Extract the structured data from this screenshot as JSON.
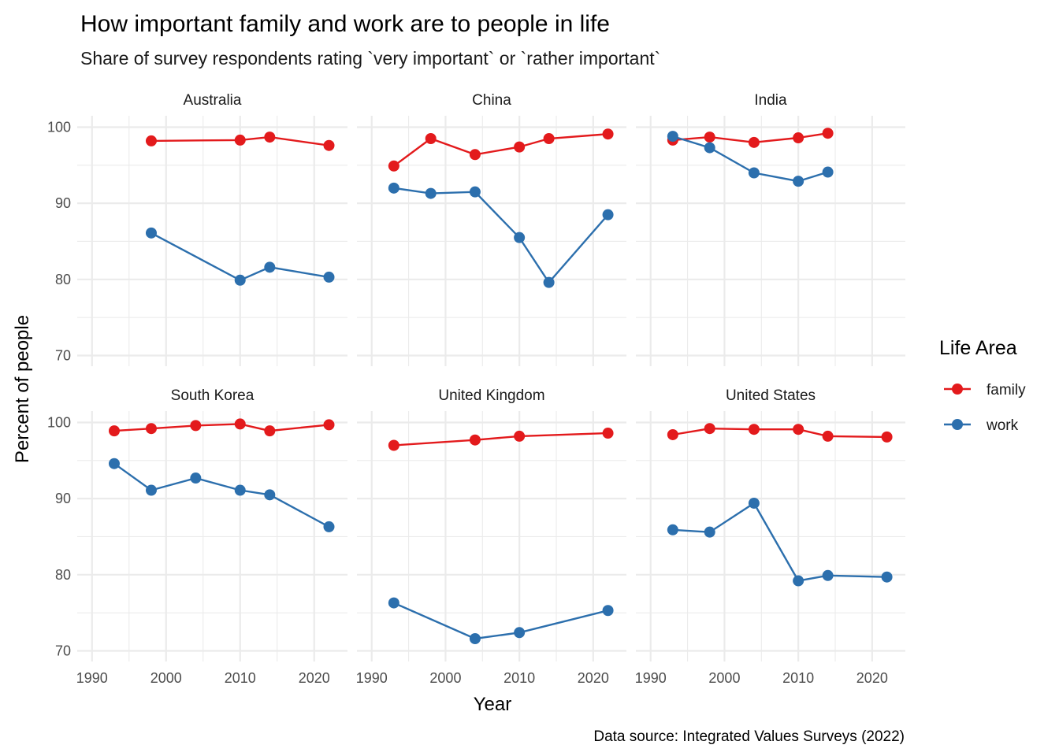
{
  "chart_data": {
    "type": "line",
    "title": "How important family and work are to people in life",
    "subtitle": "Share of survey respondents rating `very important` or `rather important`",
    "xlabel": "Year",
    "ylabel": "Percent of people",
    "caption": "Data source: Integrated Values Surveys (2022)",
    "xlim": [
      1988,
      2024.5
    ],
    "ylim": [
      68.6,
      101.5
    ],
    "x_ticks": [
      1990,
      2000,
      2010,
      2020
    ],
    "y_ticks": [
      70,
      80,
      90,
      100
    ],
    "grid": true,
    "legend": {
      "title": "Life Area",
      "placement": "right",
      "entries": [
        "family",
        "work"
      ]
    },
    "colors": {
      "family": "#e31a1c",
      "work": "#2c6fad"
    },
    "facets": [
      {
        "name": "Australia",
        "series": [
          {
            "name": "family",
            "x": [
              1998,
              2010,
              2014,
              2022
            ],
            "values": [
              98.2,
              98.3,
              98.7,
              97.6
            ]
          },
          {
            "name": "work",
            "x": [
              1998,
              2010,
              2014,
              2022
            ],
            "values": [
              86.1,
              79.9,
              81.6,
              80.3
            ]
          }
        ]
      },
      {
        "name": "China",
        "series": [
          {
            "name": "family",
            "x": [
              1993,
              1998,
              2004,
              2010,
              2014,
              2022
            ],
            "values": [
              94.9,
              98.5,
              96.4,
              97.4,
              98.5,
              99.1
            ]
          },
          {
            "name": "work",
            "x": [
              1993,
              1998,
              2004,
              2010,
              2014,
              2022
            ],
            "values": [
              92.0,
              91.3,
              91.5,
              85.5,
              79.6,
              88.5
            ]
          }
        ]
      },
      {
        "name": "India",
        "series": [
          {
            "name": "family",
            "x": [
              1993,
              1998,
              2004,
              2010,
              2014
            ],
            "values": [
              98.3,
              98.7,
              98.0,
              98.6,
              99.2
            ]
          },
          {
            "name": "work",
            "x": [
              1993,
              1998,
              2004,
              2010,
              2014
            ],
            "values": [
              98.8,
              97.3,
              94.0,
              92.9,
              94.1
            ]
          }
        ]
      },
      {
        "name": "South Korea",
        "series": [
          {
            "name": "family",
            "x": [
              1993,
              1998,
              2004,
              2010,
              2014,
              2022
            ],
            "values": [
              98.9,
              99.2,
              99.6,
              99.8,
              98.9,
              99.7
            ]
          },
          {
            "name": "work",
            "x": [
              1993,
              1998,
              2004,
              2010,
              2014,
              2022
            ],
            "values": [
              94.6,
              91.1,
              92.7,
              91.1,
              90.5,
              86.3
            ]
          }
        ]
      },
      {
        "name": "United Kingdom",
        "series": [
          {
            "name": "family",
            "x": [
              1993,
              2004,
              2010,
              2022
            ],
            "values": [
              97.0,
              97.7,
              98.2,
              98.6
            ]
          },
          {
            "name": "work",
            "x": [
              1993,
              2004,
              2010,
              2022
            ],
            "values": [
              76.3,
              71.6,
              72.4,
              75.3
            ]
          }
        ]
      },
      {
        "name": "United States",
        "series": [
          {
            "name": "family",
            "x": [
              1993,
              1998,
              2004,
              2010,
              2014,
              2022
            ],
            "values": [
              98.4,
              99.2,
              99.1,
              99.1,
              98.2,
              98.1
            ]
          },
          {
            "name": "work",
            "x": [
              1993,
              1998,
              2004,
              2010,
              2014,
              2022
            ],
            "values": [
              85.9,
              85.6,
              89.4,
              79.2,
              79.9,
              79.7
            ]
          }
        ]
      }
    ]
  }
}
